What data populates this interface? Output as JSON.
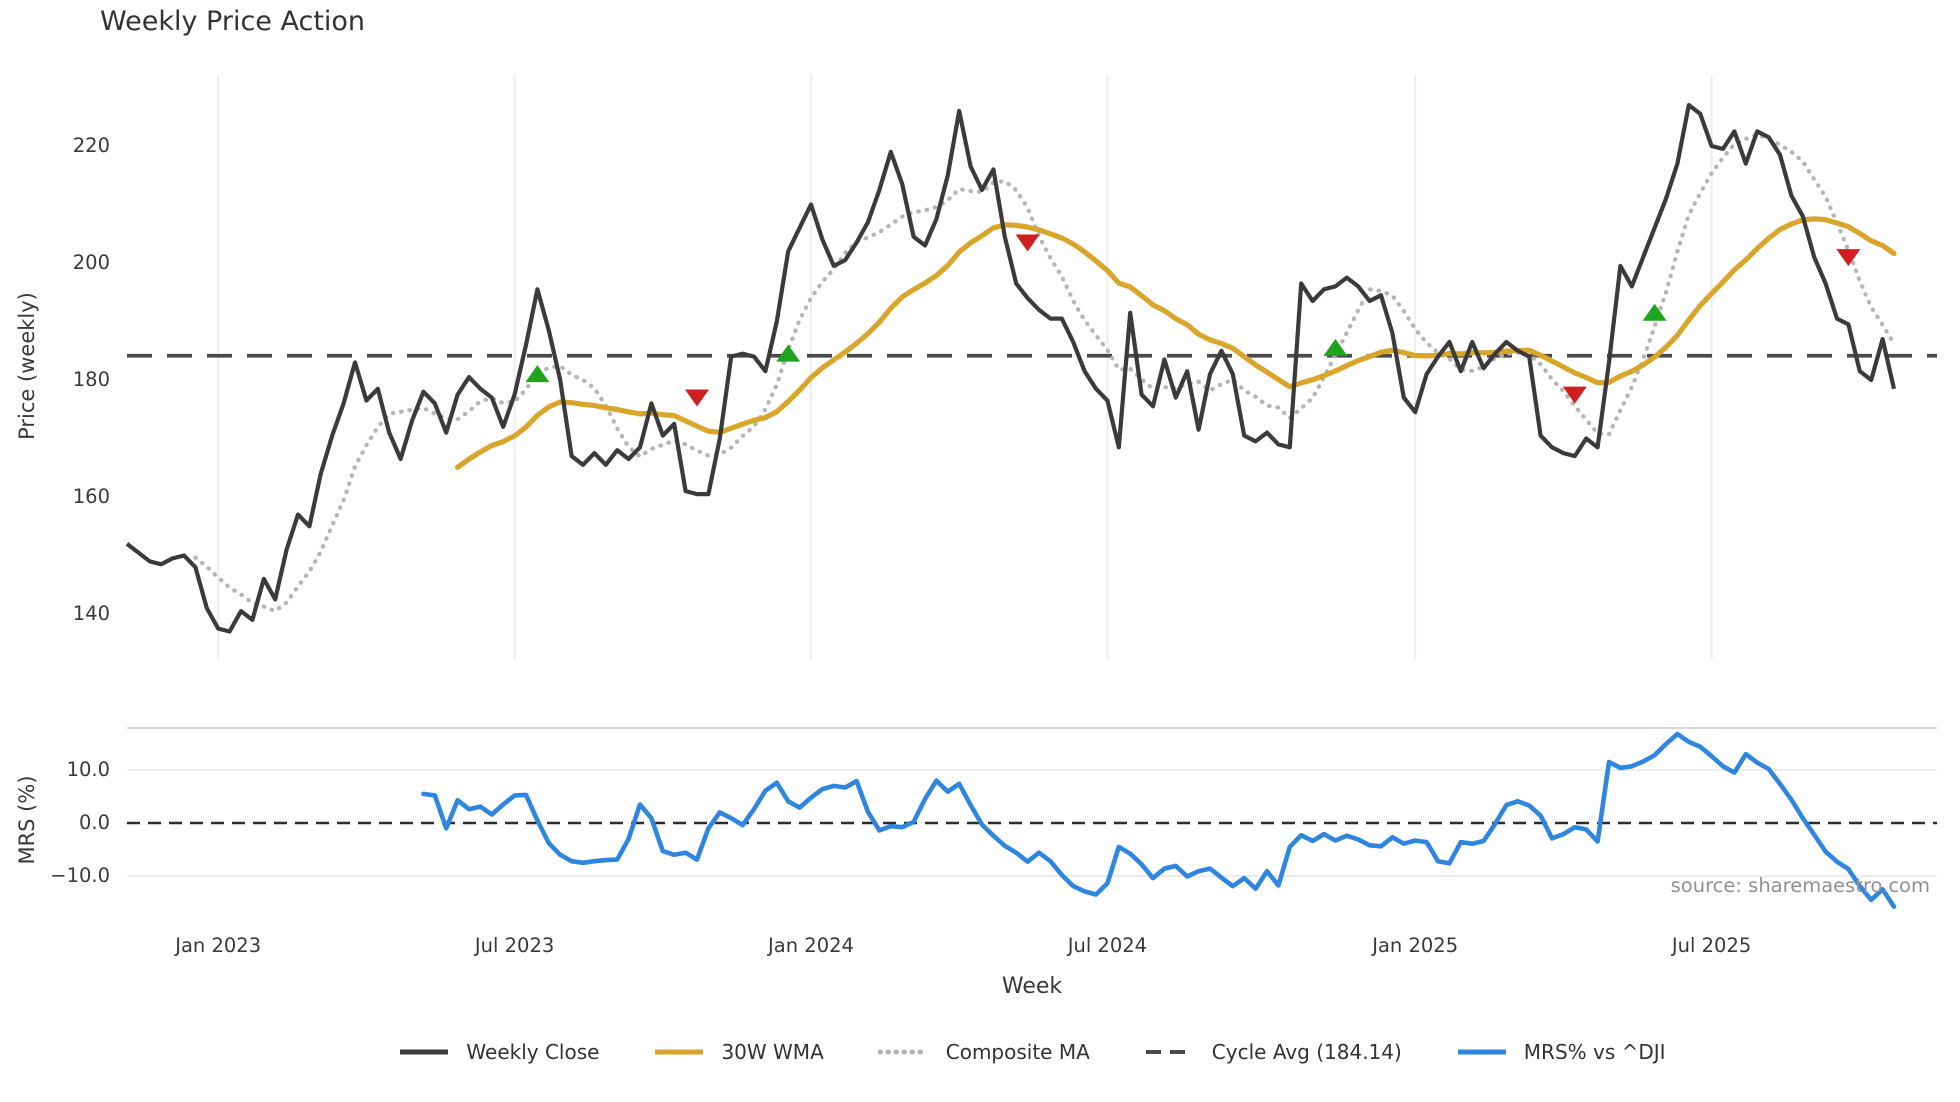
{
  "chart": {
    "title": "Weekly Price Action",
    "main_ylabel": "Price (weekly)",
    "mrs_ylabel": "MRS (%)",
    "xlabel": "Week",
    "source": "source: sharemaestro.com"
  },
  "chart_data": {
    "type": "line",
    "title": "Weekly Price Action",
    "xlabel": "Week",
    "x_unit": "weekly index (week 0 = left edge of plot)",
    "x_tick_labels": [
      "Jan 2023",
      "Jul 2023",
      "Jan 2024",
      "Jul 2024",
      "Jan 2025",
      "Jul 2025"
    ],
    "x_tick_weeks": [
      8,
      34,
      60,
      86,
      113,
      139
    ],
    "main_panel": {
      "ylabel": "Price (weekly)",
      "yticks": [
        140,
        160,
        180,
        200,
        220
      ],
      "ylim": [
        132,
        232
      ],
      "grid": "vertical-only"
    },
    "mrs_panel": {
      "ylabel": "MRS (%)",
      "ytick_values": [
        10,
        0,
        -10
      ],
      "ytick_labels": [
        "10.0",
        "0.0",
        "−10.0"
      ],
      "ylim": [
        -16.8,
        17.9
      ],
      "zero_line": "dashed",
      "grid": "horizontal-only"
    },
    "legend_position": "bottom-center",
    "legend": [
      {
        "label": "Weekly Close",
        "style": "solid",
        "color": "#3b3b3b"
      },
      {
        "label": "30W WMA",
        "style": "solid",
        "color": "#d9a62b"
      },
      {
        "label": "Composite MA",
        "style": "dotted",
        "color": "#b5b5b5"
      },
      {
        "label": "Cycle Avg (184.14)",
        "style": "dashed",
        "color": "#4a4a4a"
      },
      {
        "label": "MRS% vs ^DJI",
        "style": "solid",
        "color": "#2f86e0"
      }
    ],
    "cycle_avg": 184.14,
    "series": [
      {
        "name": "Weekly Close",
        "color": "#3b3b3b",
        "start_week": 0,
        "values": [
          152,
          150.5,
          149,
          148.5,
          149.5,
          150,
          148,
          141,
          137.5,
          137,
          140.5,
          139,
          146,
          142.5,
          151,
          157,
          155,
          164,
          170.5,
          176,
          183,
          176.5,
          178.5,
          171,
          166.5,
          173,
          178,
          176,
          171,
          177.5,
          180.5,
          178.5,
          177,
          172,
          177.5,
          186,
          195.5,
          188.5,
          180,
          167,
          165.5,
          167.5,
          165.5,
          168,
          166.5,
          168.5,
          176,
          170.5,
          172.5,
          161,
          160.5,
          160.5,
          170,
          184,
          184.5,
          184,
          181.5,
          190,
          202,
          206,
          210,
          204,
          199.5,
          200.5,
          203.5,
          207,
          212.5,
          219,
          213.5,
          204.5,
          203,
          207.5,
          215,
          226,
          216.5,
          212.5,
          216,
          204.5,
          196.5,
          194,
          192,
          190.5,
          190.5,
          186.5,
          181.5,
          178.5,
          176.5,
          168.5,
          191.5,
          177.5,
          175.5,
          183.5,
          177,
          181.5,
          171.5,
          181,
          185,
          181,
          170.5,
          169.5,
          171,
          169,
          168.5,
          196.5,
          193.5,
          195.5,
          196,
          197.5,
          196,
          193.5,
          194.5,
          188,
          177,
          174.5,
          181,
          184,
          186.5,
          181.5,
          186.5,
          182,
          184.5,
          186.5,
          185,
          184,
          170.5,
          168.5,
          167.5,
          167,
          170,
          168.5,
          183,
          199.5,
          196,
          201,
          206,
          211,
          217,
          227,
          225.5,
          220,
          219.5,
          222.5,
          217,
          222.5,
          221.5,
          218.5,
          211.5,
          208,
          201,
          196.5,
          190.5,
          189.5,
          181.5,
          180,
          187,
          178.5
        ]
      },
      {
        "name": "30W WMA",
        "color": "#d9a62b",
        "start_week": 29,
        "derived": "30-week linearly-weighted moving average of Weekly Close",
        "window": 30
      },
      {
        "name": "Composite MA",
        "color": "#b5b5b5",
        "start_week": 6,
        "derived": "7-week simple moving average of Weekly Close",
        "window": 7
      },
      {
        "name": "Cycle Avg",
        "color": "#4a4a4a",
        "style": "dashed",
        "value": 184.14
      },
      {
        "name": "MRS% vs ^DJI",
        "color": "#2f86e0",
        "start_week": 26,
        "values": [
          5.5,
          5.2,
          -1,
          4.3,
          2.6,
          3.1,
          1.6,
          3.5,
          5.2,
          5.3,
          0.5,
          -3.8,
          -6,
          -7.2,
          -7.5,
          -7.2,
          -7,
          -6.9,
          -3,
          3.5,
          0.9,
          -5.3,
          -6,
          -5.6,
          -6.9,
          -1,
          2,
          0.9,
          -0.4,
          2.6,
          6.1,
          7.6,
          4.1,
          2.9,
          4.8,
          6.4,
          7,
          6.7,
          7.9,
          2.1,
          -1.4,
          -0.6,
          -0.8,
          0.2,
          4.5,
          8,
          5.9,
          7.4,
          3.4,
          -0.3,
          -2.4,
          -4.3,
          -5.6,
          -7.3,
          -5.6,
          -7.2,
          -9.8,
          -11.9,
          -12.9,
          -13.5,
          -11.4,
          -4.5,
          -5.8,
          -7.8,
          -10.4,
          -8.6,
          -8.1,
          -10.1,
          -9.1,
          -8.6,
          -10.3,
          -11.9,
          -10.4,
          -12.4,
          -9.1,
          -11.8,
          -4.5,
          -2.3,
          -3.4,
          -2.1,
          -3.3,
          -2.4,
          -3.1,
          -4.2,
          -4.4,
          -2.7,
          -3.9,
          -3.3,
          -3.6,
          -7.2,
          -7.6,
          -3.6,
          -3.9,
          -3.4,
          -0.2,
          3.4,
          4.1,
          3.3,
          1.4,
          -2.9,
          -2.1,
          -0.8,
          -1.2,
          -3.5,
          11.5,
          10.4,
          10.7,
          11.6,
          12.8,
          14.9,
          16.8,
          15.3,
          14.4,
          12.6,
          10.7,
          9.5,
          13,
          11.4,
          10.2,
          7.4,
          4.4,
          0.9,
          -2.2,
          -5.4,
          -7.3,
          -8.7,
          -11.9,
          -14.5,
          -12.5,
          -15.8
        ]
      }
    ],
    "signals": {
      "buy_color": "#1ea41e",
      "sell_color": "#cf2020",
      "buy": [
        {
          "week": 36,
          "price": 181
        },
        {
          "week": 58,
          "price": 184.5
        },
        {
          "week": 106,
          "price": 185.5
        },
        {
          "week": 134,
          "price": 191.5
        }
      ],
      "sell": [
        {
          "week": 50,
          "price": 177
        },
        {
          "week": 79,
          "price": 203.5
        },
        {
          "week": 127,
          "price": 177.5
        },
        {
          "week": 151,
          "price": 201
        }
      ]
    },
    "colors": {
      "grid": "#ededed",
      "panel_border": "#d8d8d8",
      "text": "#3a3a3a",
      "source_text": "#8f9098"
    }
  }
}
